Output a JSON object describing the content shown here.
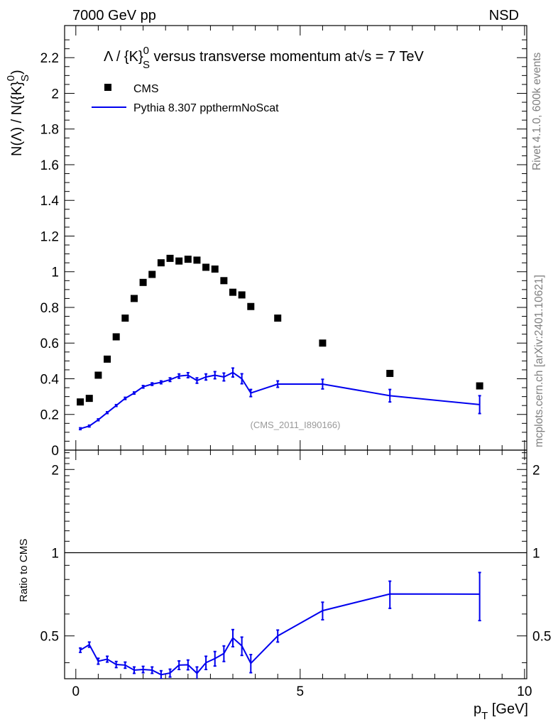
{
  "header": {
    "left": "7000 GeV pp",
    "right": "NSD"
  },
  "side_text": {
    "rivet": "Rivet 4.1.0,  600k events",
    "mcplots": "mcplots.cern.ch [arXiv:2401.10621]"
  },
  "title": {
    "lambda": "Λ",
    "slash": " / {K}",
    "sup0": "0",
    "subS": "S",
    "rest": " versus transverse momentum at",
    "sqrt": "√",
    "s": "s",
    "energy": " = 7 TeV"
  },
  "ylabel_main": {
    "part1": "N(Λ)  /  N({K}",
    "sup0": "0",
    "subS": "S",
    "part2": ")"
  },
  "ylabel_ratio": "Ratio to CMS",
  "xlabel": {
    "p": "p",
    "sub": "T",
    "rest": " [GeV]"
  },
  "analysis_tag": "(CMS_2011_I890166)",
  "legend": [
    {
      "name": "CMS",
      "kind": "marker",
      "color": "#000000"
    },
    {
      "name": "Pythia 8.307 ppthermNoScat",
      "kind": "line",
      "color": "#0000ee"
    }
  ],
  "chart_data": [
    {
      "type": "scatter",
      "panel": "main",
      "xlim": [
        -0.25,
        10.05
      ],
      "ylim": [
        0,
        2.38
      ],
      "yticks": [
        "0",
        "0.2",
        "0.4",
        "0.6",
        "0.8",
        "1",
        "1.2",
        "1.4",
        "1.6",
        "1.8",
        "2",
        "2.2"
      ],
      "ytick_values": [
        0,
        0.2,
        0.4,
        0.6,
        0.8,
        1.0,
        1.2,
        1.4,
        1.6,
        1.8,
        2.0,
        2.2
      ],
      "series": [
        {
          "name": "CMS",
          "x": [
            0.1,
            0.3,
            0.5,
            0.7,
            0.9,
            1.1,
            1.3,
            1.5,
            1.7,
            1.9,
            2.1,
            2.3,
            2.5,
            2.7,
            2.9,
            3.1,
            3.3,
            3.5,
            3.7,
            3.9,
            4.5,
            5.5,
            7.0,
            9.0
          ],
          "y": [
            0.27,
            0.29,
            0.42,
            0.51,
            0.635,
            0.74,
            0.85,
            0.94,
            0.985,
            1.05,
            1.075,
            1.06,
            1.07,
            1.065,
            1.025,
            1.015,
            0.95,
            0.885,
            0.87,
            0.805,
            0.74,
            0.6,
            0.43,
            0.36
          ]
        },
        {
          "name": "Pythia 8.307 ppthermNoScat",
          "x": [
            0.1,
            0.3,
            0.5,
            0.7,
            0.9,
            1.1,
            1.3,
            1.5,
            1.7,
            1.9,
            2.1,
            2.3,
            2.5,
            2.7,
            2.9,
            3.1,
            3.3,
            3.5,
            3.7,
            3.9,
            4.5,
            5.5,
            7.0,
            9.0
          ],
          "y": [
            0.12,
            0.135,
            0.17,
            0.21,
            0.25,
            0.29,
            0.32,
            0.355,
            0.37,
            0.38,
            0.395,
            0.415,
            0.42,
            0.39,
            0.41,
            0.42,
            0.41,
            0.435,
            0.4,
            0.32,
            0.37,
            0.37,
            0.305,
            0.255
          ],
          "err": [
            0.005,
            0.005,
            0.005,
            0.005,
            0.005,
            0.006,
            0.006,
            0.007,
            0.007,
            0.008,
            0.01,
            0.012,
            0.014,
            0.015,
            0.017,
            0.02,
            0.022,
            0.025,
            0.028,
            0.02,
            0.018,
            0.027,
            0.035,
            0.05
          ]
        }
      ]
    },
    {
      "type": "line",
      "panel": "ratio",
      "ylabel": "Ratio to CMS",
      "xlabel": "p_T [GeV]",
      "xlim": [
        -0.25,
        10.05
      ],
      "ylim": [
        0.35,
        2.35
      ],
      "log_y": true,
      "yticks": [
        "0.5",
        "1",
        "2"
      ],
      "ytick_values": [
        0.5,
        1.0,
        2.0
      ],
      "xticks": [
        "0",
        "5",
        "10"
      ],
      "xtick_values": [
        0,
        5,
        10
      ],
      "reference_line": 1.0,
      "series": [
        {
          "name": "Pythia 8.307 ppthermNoScat / CMS",
          "x": [
            0.1,
            0.3,
            0.5,
            0.7,
            0.9,
            1.1,
            1.3,
            1.5,
            1.7,
            1.9,
            2.1,
            2.3,
            2.5,
            2.7,
            2.9,
            3.1,
            3.3,
            3.5,
            3.7,
            3.9,
            4.5,
            5.5,
            7.0,
            9.0
          ],
          "y": [
            0.444,
            0.465,
            0.405,
            0.412,
            0.394,
            0.392,
            0.376,
            0.378,
            0.376,
            0.362,
            0.367,
            0.392,
            0.393,
            0.366,
            0.4,
            0.414,
            0.432,
            0.492,
            0.46,
            0.398,
            0.5,
            0.617,
            0.709,
            0.708
          ],
          "err": [
            0.008,
            0.01,
            0.01,
            0.01,
            0.01,
            0.01,
            0.01,
            0.01,
            0.01,
            0.012,
            0.012,
            0.014,
            0.016,
            0.02,
            0.022,
            0.025,
            0.028,
            0.035,
            0.035,
            0.03,
            0.025,
            0.045,
            0.08,
            0.14
          ]
        }
      ]
    }
  ]
}
